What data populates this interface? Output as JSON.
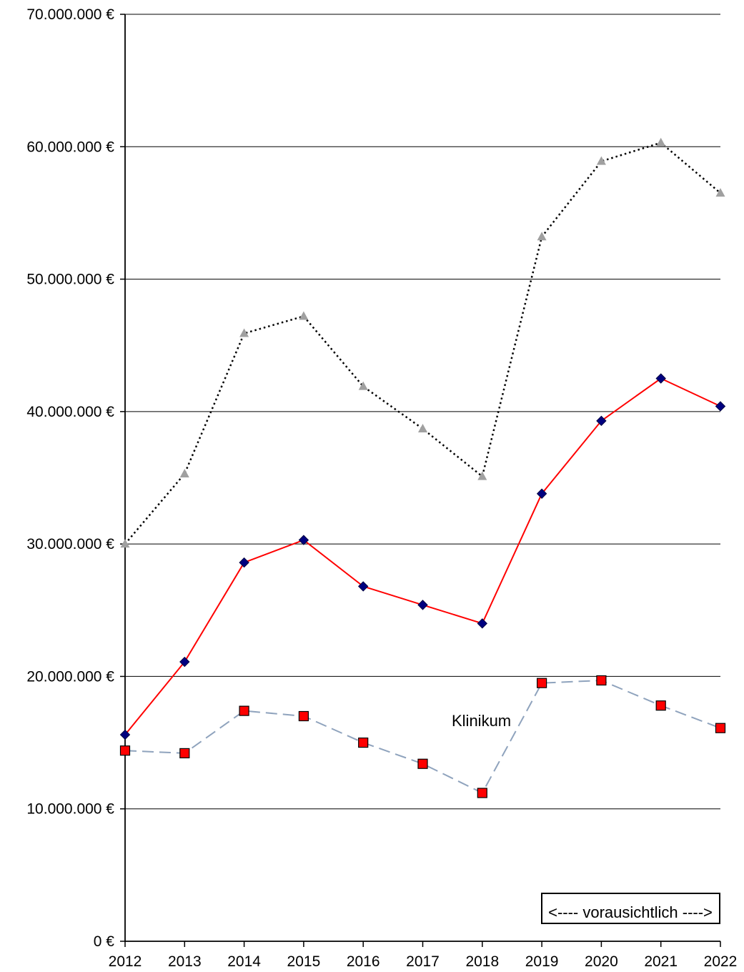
{
  "chart_data": {
    "type": "line",
    "title": "",
    "xlabel": "",
    "ylabel": "",
    "x": [
      "2012",
      "2013",
      "2014",
      "2015",
      "2016",
      "2017",
      "2018",
      "2019",
      "2020",
      "2021",
      "2022"
    ],
    "ylim": [
      0,
      70000000
    ],
    "y_ticks": [
      0,
      10000000,
      20000000,
      30000000,
      40000000,
      50000000,
      60000000,
      70000000
    ],
    "y_tick_labels": [
      "0 €",
      "10.000.000 €",
      "20.000.000 €",
      "30.000.000 €",
      "40.000.000 €",
      "50.000.000 €",
      "60.000.000 €",
      "70.000.000 €"
    ],
    "grid": true,
    "legend": "none",
    "series": [
      {
        "values": [
          30000000,
          35300000,
          45900000,
          47200000,
          41900000,
          38700000,
          35100000,
          53200000,
          58900000,
          60300000,
          56500000
        ],
        "color": "#000000",
        "marker_color": "#a0a0a0",
        "line_style": "dotted",
        "marker": "triangle"
      },
      {
        "values": [
          15600000,
          21100000,
          28600000,
          30300000,
          26800000,
          25400000,
          24000000,
          33800000,
          39300000,
          42500000,
          40400000
        ],
        "color": "#ff0000",
        "marker_color": "#000080",
        "line_style": "solid",
        "marker": "diamond"
      },
      {
        "name": "Klinikum",
        "values": [
          14400000,
          14200000,
          17400000,
          17000000,
          15000000,
          13400000,
          11200000,
          19500000,
          19700000,
          17800000,
          16100000
        ],
        "color": "#8fa3bd",
        "marker_color": "#ff0000",
        "line_style": "dashed",
        "marker": "square"
      }
    ],
    "annotations": {
      "series_label": "Klinikum",
      "forecast_box": "<---- vorausichtlich ---->"
    }
  }
}
